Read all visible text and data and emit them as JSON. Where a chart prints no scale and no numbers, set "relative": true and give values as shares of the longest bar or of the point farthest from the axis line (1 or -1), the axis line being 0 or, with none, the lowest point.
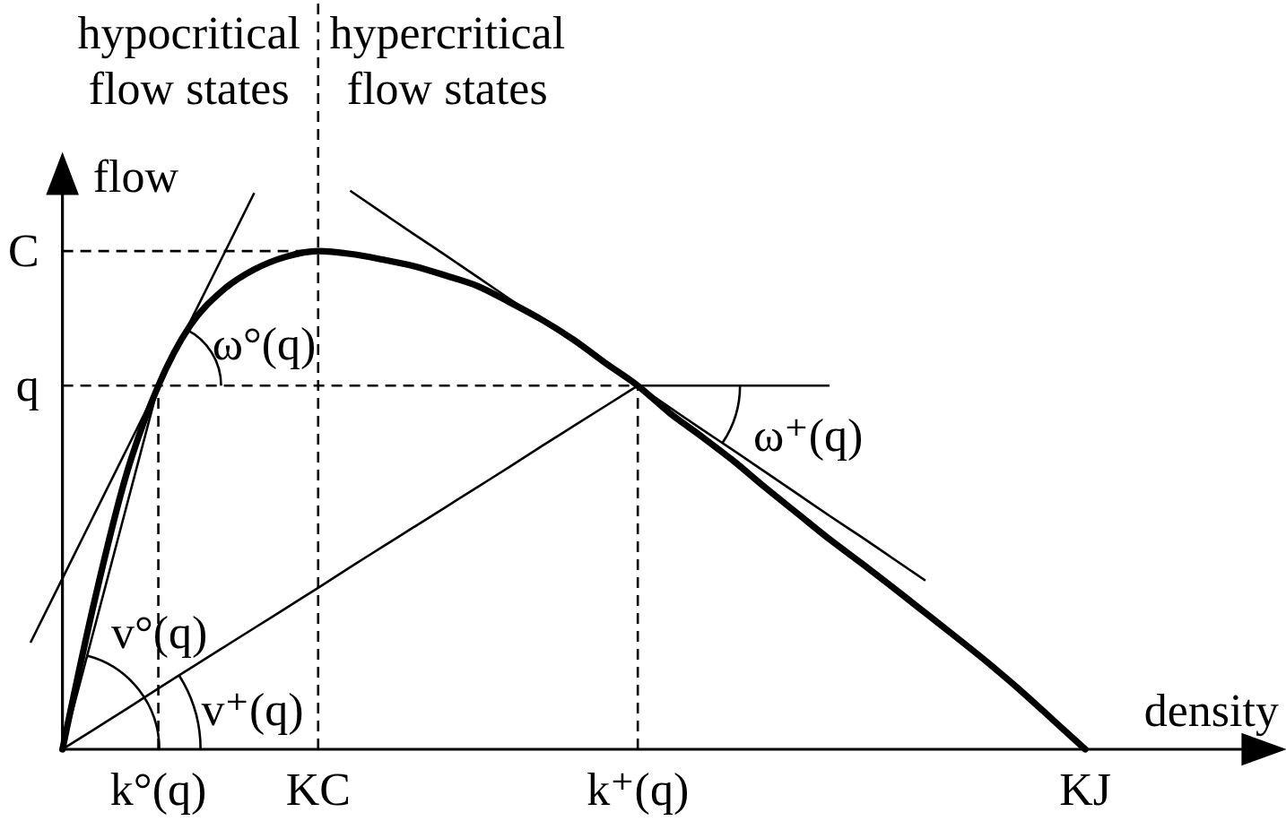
{
  "chart_data": {
    "type": "line",
    "relative": true,
    "categories": [
      null,
      null,
      null,
      null,
      "k°(q)",
      null,
      null,
      null,
      null,
      "KC",
      null,
      null,
      null,
      null,
      null,
      null,
      null,
      null,
      null,
      "k⁺(q)",
      null,
      null,
      null,
      null,
      null,
      null,
      null,
      null,
      null,
      null,
      null,
      null,
      null,
      "KJ",
      null,
      null,
      null,
      null,
      null,
      null
    ],
    "annotations": [
      "hypocritical\nflow states",
      "hypercritical\nflow states",
      "ω°(q)",
      "ω⁺(q)",
      "v°(q)",
      "v⁺(q)",
      "C",
      "q"
    ],
    "xlabel": "density",
    "ylabel": "flow",
    "series": [
      {
        "color": "#000000",
        "values": [
          null,
          0,
          0.265,
          0.492,
          0.651,
          0.759,
          0.821,
          0.859,
          0.882,
          0.892,
          0.887,
          0.877,
          0.865,
          0.848,
          0.829,
          0.8,
          0.769,
          0.733,
          0.691,
          0.651,
          0.602,
          0.56,
          0.516,
          0.468,
          0.422,
          0.376,
          0.333,
          0.289,
          0.244,
          0.199,
          0.153,
          0.104,
          0.052,
          0,
          null,
          null,
          null,
          null,
          null,
          null
        ]
      },
      {
        "color": "#000000",
        "values": [
          0.191,
          0.306,
          0.421,
          0.536,
          0.651,
          0.766,
          0.881,
          0.996,
          null,
          null,
          null,
          null,
          null,
          null,
          null,
          null,
          null,
          null,
          null,
          null,
          null,
          null,
          null,
          null,
          null,
          null,
          null,
          null,
          null,
          null,
          null,
          null,
          null,
          null,
          null,
          null,
          null,
          null,
          null,
          null
        ]
      },
      {
        "color": "#000000",
        "values": [
          null,
          null,
          null,
          null,
          null,
          null,
          null,
          null,
          null,
          null,
          1,
          0.961,
          0.922,
          0.884,
          0.845,
          0.806,
          0.767,
          0.729,
          0.69,
          0.651,
          0.612,
          0.573,
          0.535,
          0.496,
          0.457,
          0.418,
          0.38,
          0.341,
          0.302,
          null,
          null,
          null,
          null,
          null,
          null,
          null,
          null,
          null,
          null,
          null
        ]
      },
      {
        "color": "#000000",
        "values": [
          null,
          0,
          0.217,
          0.434,
          0.651,
          null,
          null,
          null,
          null,
          null,
          null,
          null,
          null,
          null,
          null,
          null,
          null,
          null,
          null,
          null,
          null,
          null,
          null,
          null,
          null,
          null,
          null,
          null,
          null,
          null,
          null,
          null,
          null,
          null,
          null,
          null,
          null,
          null,
          null,
          null
        ]
      },
      {
        "color": "#000000",
        "values": [
          null,
          0,
          0.036,
          0.072,
          0.109,
          0.145,
          0.181,
          0.217,
          0.253,
          0.289,
          0.326,
          0.362,
          0.398,
          0.434,
          0.47,
          0.506,
          0.543,
          0.579,
          0.615,
          0.651,
          null,
          null,
          null,
          null,
          null,
          null,
          null,
          null,
          null,
          null,
          null,
          null,
          null,
          null,
          null,
          null,
          null,
          null,
          null,
          null
        ]
      },
      {
        "color": "#000000",
        "values": [
          null,
          null,
          null,
          null,
          null,
          null,
          null,
          null,
          null,
          null,
          null,
          null,
          null,
          null,
          null,
          null,
          null,
          null,
          null,
          0.651,
          0.651,
          0.651,
          0.651,
          0.651,
          0.651,
          0.651,
          null,
          null,
          null,
          null,
          null,
          null,
          null,
          null,
          null,
          null,
          null,
          null,
          null,
          null
        ]
      },
      {
        "color": "#000000",
        "line_style": "dashed",
        "values": [
          null,
          0.892,
          0.892,
          0.892,
          0.892,
          0.892,
          0.892,
          0.892,
          0.892,
          0.892,
          null,
          null,
          null,
          null,
          null,
          null,
          null,
          null,
          null,
          null,
          null,
          null,
          null,
          null,
          null,
          null,
          null,
          null,
          null,
          null,
          null,
          null,
          null,
          null,
          null,
          null,
          null,
          null,
          null,
          null
        ]
      },
      {
        "color": "#000000",
        "line_style": "dashed",
        "values": [
          null,
          0.651,
          0.651,
          0.651,
          0.651,
          0.651,
          0.651,
          0.651,
          0.651,
          0.651,
          0.651,
          0.651,
          0.651,
          0.651,
          0.651,
          0.651,
          0.651,
          0.651,
          0.651,
          0.651,
          null,
          null,
          null,
          null,
          null,
          null,
          null,
          null,
          null,
          null,
          null,
          null,
          null,
          null,
          null,
          null,
          null,
          null,
          null,
          null
        ]
      },
      {
        "color": "#000000",
        "line_style": "dashed",
        "x": [
          "k°(q)",
          "k°(q)"
        ],
        "values": [
          0,
          0.651
        ]
      },
      {
        "color": "#000000",
        "line_style": "dashed",
        "x": [
          "k⁺(q)",
          "k⁺(q)"
        ],
        "values": [
          0,
          0.651
        ]
      }
    ],
    "ref_lines": [
      {
        "axis": "x",
        "value": "KC",
        "line_style": "dashed",
        "color": "#000000"
      }
    ],
    "line_style": "solid"
  }
}
